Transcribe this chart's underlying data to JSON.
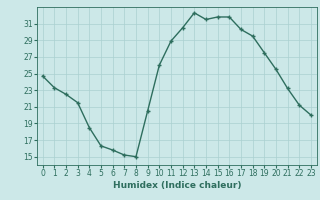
{
  "x": [
    0,
    1,
    2,
    3,
    4,
    5,
    6,
    7,
    8,
    9,
    10,
    11,
    12,
    13,
    14,
    15,
    16,
    17,
    18,
    19,
    20,
    21,
    22,
    23
  ],
  "y": [
    24.7,
    23.3,
    22.5,
    21.5,
    18.5,
    16.3,
    15.8,
    15.2,
    15.0,
    20.5,
    26.0,
    28.9,
    30.5,
    32.3,
    31.5,
    31.8,
    31.8,
    30.3,
    29.5,
    27.5,
    25.5,
    23.2,
    21.2,
    20.0
  ],
  "ylim": [
    14.0,
    33.0
  ],
  "yticks": [
    15,
    17,
    19,
    21,
    23,
    25,
    27,
    29,
    31
  ],
  "xticks": [
    0,
    1,
    2,
    3,
    4,
    5,
    6,
    7,
    8,
    9,
    10,
    11,
    12,
    13,
    14,
    15,
    16,
    17,
    18,
    19,
    20,
    21,
    22,
    23
  ],
  "xlabel": "Humidex (Indice chaleur)",
  "line_color": "#2e6e5e",
  "marker": "+",
  "background_color": "#cce8e8",
  "grid_color": "#aad0d0",
  "text_color": "#2e6e5e",
  "tick_fontsize": 5.5,
  "xlabel_fontsize": 6.5,
  "linewidth": 1.0,
  "markersize": 3.5,
  "xlim": [
    -0.5,
    23.5
  ]
}
